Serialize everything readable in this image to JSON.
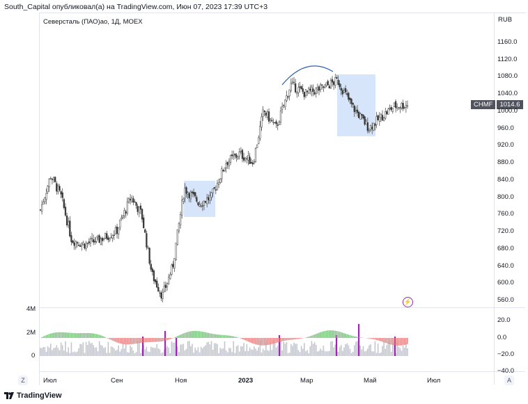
{
  "header": {
    "text": "South_Capital опубликовал(а) на TradingView.com, Июн 07, 2023 17:39 UTC+3"
  },
  "symbol": {
    "text": "Северсталь (ПАО)ао, 1Д, MOEX"
  },
  "currency": "RUB",
  "ticker_badge": {
    "ticker": "CHMF",
    "price": "1014.6"
  },
  "price_axis": [
    "1160.0",
    "1120.0",
    "1080.0",
    "1040.0",
    "1000.0",
    "960.0",
    "920.0",
    "880.0",
    "840.0",
    "800.0",
    "760.0",
    "720.0",
    "680.0",
    "640.0",
    "600.0",
    "560.0"
  ],
  "time_axis": [
    {
      "label": "Июл",
      "bold": false
    },
    {
      "label": "Сен",
      "bold": false
    },
    {
      "label": "Ноя",
      "bold": false
    },
    {
      "label": "2023",
      "bold": true
    },
    {
      "label": "Мар",
      "bold": false
    },
    {
      "label": "Май",
      "bold": false
    },
    {
      "label": "Июл",
      "bold": false
    }
  ],
  "volume_axis": [
    "4M",
    "2M",
    "0"
  ],
  "oscillator_axis": [
    "20.0",
    "0.0",
    "−20.0",
    "−40.0"
  ],
  "buttons": {
    "z": "Z",
    "a": "A"
  },
  "footer": {
    "brand": "TradingView"
  },
  "colors": {
    "up": "#26a69a",
    "down": "#ef5350",
    "candle": "#3a3a3a",
    "box": "#bbd3f5",
    "arc": "#2962ff",
    "osc_pos": "#4caf50",
    "osc_neg": "#e57373",
    "vol": "#b2b5be",
    "spike": "#9c27b0"
  },
  "chart_data": {
    "type": "candlestick",
    "symbol": "CHMF",
    "interval": "1D",
    "y_range": [
      560,
      1160
    ],
    "close_path": [
      [
        "2022-06-20",
        770
      ],
      [
        "2022-06-30",
        850
      ],
      [
        "2022-07-10",
        800
      ],
      [
        "2022-07-20",
        700
      ],
      [
        "2022-08-01",
        690
      ],
      [
        "2022-08-15",
        700
      ],
      [
        "2022-09-01",
        720
      ],
      [
        "2022-09-15",
        800
      ],
      [
        "2022-09-25",
        760
      ],
      [
        "2022-10-05",
        620
      ],
      [
        "2022-10-15",
        570
      ],
      [
        "2022-10-25",
        640
      ],
      [
        "2022-11-05",
        820
      ],
      [
        "2022-11-20",
        785
      ],
      [
        "2022-12-01",
        800
      ],
      [
        "2022-12-15",
        880
      ],
      [
        "2022-12-28",
        900
      ],
      [
        "2023-01-10",
        880
      ],
      [
        "2023-01-20",
        1000
      ],
      [
        "2023-02-01",
        960
      ],
      [
        "2023-02-15",
        1060
      ],
      [
        "2023-03-01",
        1040
      ],
      [
        "2023-03-15",
        1050
      ],
      [
        "2023-04-01",
        1070
      ],
      [
        "2023-04-15",
        1010
      ],
      [
        "2023-05-01",
        960
      ],
      [
        "2023-05-15",
        990
      ],
      [
        "2023-05-25",
        1010
      ],
      [
        "2023-06-07",
        1014.6
      ]
    ]
  }
}
